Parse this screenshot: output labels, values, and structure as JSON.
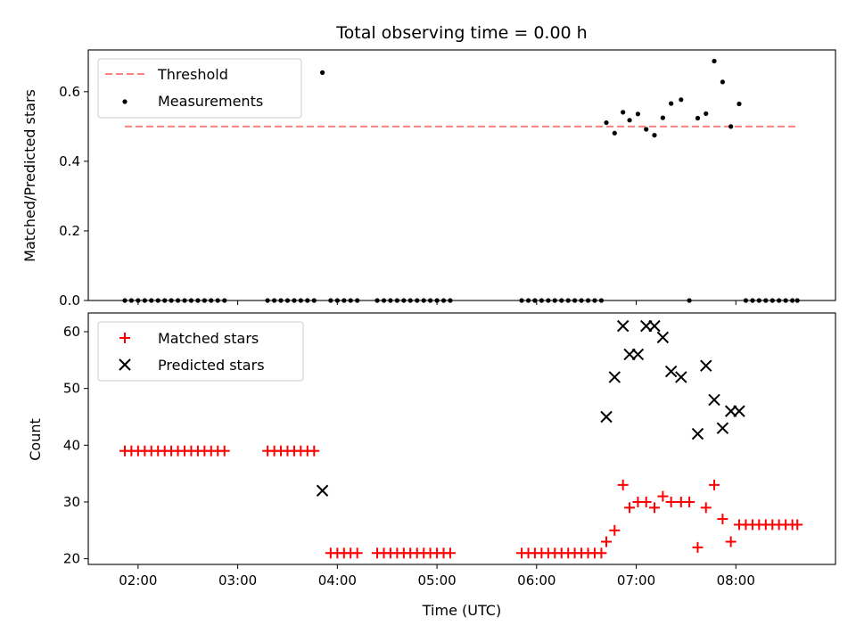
{
  "chart_data": {
    "title": "Total observing time = 0.00 h",
    "x_ticks": [
      "02:00",
      "03:00",
      "04:00",
      "05:00",
      "06:00",
      "07:00",
      "08:00"
    ],
    "x_tick_hours": [
      2,
      3,
      4,
      5,
      6,
      7,
      8
    ],
    "xlim_hours": [
      1.5,
      9.0
    ],
    "xlabel": "Time (UTC)",
    "panels": [
      {
        "type": "scatter",
        "ylabel": "Matched/Predicted stars",
        "ylim": [
          0,
          0.72
        ],
        "y_ticks": [
          0.0,
          0.2,
          0.4,
          0.6
        ],
        "y_tick_labels": [
          "0.0",
          "0.2",
          "0.4",
          "0.6"
        ],
        "legend_position": "top-left",
        "threshold": {
          "name": "Threshold",
          "value": 0.5,
          "x_start": 1.867,
          "x_end": 8.617,
          "color": "#ff7f7f"
        },
        "series": [
          {
            "name": "Measurements",
            "color": "#000000",
            "points": [
              [
                1.867,
                0
              ],
              [
                1.933,
                0
              ],
              [
                2.0,
                0
              ],
              [
                2.067,
                0
              ],
              [
                2.133,
                0
              ],
              [
                2.2,
                0
              ],
              [
                2.267,
                0
              ],
              [
                2.333,
                0
              ],
              [
                2.4,
                0
              ],
              [
                2.467,
                0
              ],
              [
                2.533,
                0
              ],
              [
                2.6,
                0
              ],
              [
                2.667,
                0
              ],
              [
                2.733,
                0
              ],
              [
                2.8,
                0
              ],
              [
                2.867,
                0
              ],
              [
                3.3,
                0
              ],
              [
                3.367,
                0
              ],
              [
                3.433,
                0
              ],
              [
                3.5,
                0
              ],
              [
                3.567,
                0
              ],
              [
                3.633,
                0
              ],
              [
                3.7,
                0
              ],
              [
                3.767,
                0
              ],
              [
                3.85,
                0.655
              ],
              [
                3.933,
                0
              ],
              [
                4.0,
                0
              ],
              [
                4.067,
                0
              ],
              [
                4.133,
                0
              ],
              [
                4.2,
                0
              ],
              [
                4.4,
                0
              ],
              [
                4.467,
                0
              ],
              [
                4.533,
                0
              ],
              [
                4.6,
                0
              ],
              [
                4.667,
                0
              ],
              [
                4.733,
                0
              ],
              [
                4.8,
                0
              ],
              [
                4.867,
                0
              ],
              [
                4.933,
                0
              ],
              [
                5.0,
                0
              ],
              [
                5.067,
                0
              ],
              [
                5.133,
                0
              ],
              [
                5.85,
                0
              ],
              [
                5.917,
                0
              ],
              [
                5.983,
                0
              ],
              [
                6.05,
                0
              ],
              [
                6.117,
                0
              ],
              [
                6.183,
                0
              ],
              [
                6.25,
                0
              ],
              [
                6.317,
                0
              ],
              [
                6.383,
                0
              ],
              [
                6.45,
                0
              ],
              [
                6.517,
                0
              ],
              [
                6.583,
                0
              ],
              [
                6.65,
                0
              ],
              [
                6.7,
                0.511
              ],
              [
                6.783,
                0.481
              ],
              [
                6.867,
                0.541
              ],
              [
                6.933,
                0.518
              ],
              [
                7.017,
                0.536
              ],
              [
                7.1,
                0.492
              ],
              [
                7.183,
                0.475
              ],
              [
                7.267,
                0.525
              ],
              [
                7.35,
                0.566
              ],
              [
                7.45,
                0.577
              ],
              [
                7.533,
                0
              ],
              [
                7.617,
                0.524
              ],
              [
                7.7,
                0.537
              ],
              [
                7.783,
                0.688
              ],
              [
                7.867,
                0.628
              ],
              [
                7.95,
                0.5
              ],
              [
                8.033,
                0.565
              ],
              [
                8.1,
                0
              ],
              [
                8.167,
                0
              ],
              [
                8.233,
                0
              ],
              [
                8.3,
                0
              ],
              [
                8.367,
                0
              ],
              [
                8.433,
                0
              ],
              [
                8.5,
                0
              ],
              [
                8.567,
                0
              ],
              [
                8.617,
                0
              ]
            ]
          }
        ]
      },
      {
        "type": "scatter",
        "ylabel": "Count",
        "ylim": [
          19.0,
          63.3
        ],
        "y_ticks": [
          20,
          30,
          40,
          50,
          60
        ],
        "y_tick_labels": [
          "20",
          "30",
          "40",
          "50",
          "60"
        ],
        "legend_position": "top-left",
        "series": [
          {
            "name": "Matched stars",
            "marker": "plus",
            "color": "#ff0000",
            "points": [
              [
                1.867,
                39
              ],
              [
                1.933,
                39
              ],
              [
                2.0,
                39
              ],
              [
                2.067,
                39
              ],
              [
                2.133,
                39
              ],
              [
                2.2,
                39
              ],
              [
                2.267,
                39
              ],
              [
                2.333,
                39
              ],
              [
                2.4,
                39
              ],
              [
                2.467,
                39
              ],
              [
                2.533,
                39
              ],
              [
                2.6,
                39
              ],
              [
                2.667,
                39
              ],
              [
                2.733,
                39
              ],
              [
                2.8,
                39
              ],
              [
                2.867,
                39
              ],
              [
                3.3,
                39
              ],
              [
                3.367,
                39
              ],
              [
                3.433,
                39
              ],
              [
                3.5,
                39
              ],
              [
                3.567,
                39
              ],
              [
                3.633,
                39
              ],
              [
                3.7,
                39
              ],
              [
                3.767,
                39
              ],
              [
                3.933,
                21
              ],
              [
                4.0,
                21
              ],
              [
                4.067,
                21
              ],
              [
                4.133,
                21
              ],
              [
                4.2,
                21
              ],
              [
                4.4,
                21
              ],
              [
                4.467,
                21
              ],
              [
                4.533,
                21
              ],
              [
                4.6,
                21
              ],
              [
                4.667,
                21
              ],
              [
                4.733,
                21
              ],
              [
                4.8,
                21
              ],
              [
                4.867,
                21
              ],
              [
                4.933,
                21
              ],
              [
                5.0,
                21
              ],
              [
                5.067,
                21
              ],
              [
                5.133,
                21
              ],
              [
                5.85,
                21
              ],
              [
                5.917,
                21
              ],
              [
                5.983,
                21
              ],
              [
                6.05,
                21
              ],
              [
                6.117,
                21
              ],
              [
                6.183,
                21
              ],
              [
                6.25,
                21
              ],
              [
                6.317,
                21
              ],
              [
                6.383,
                21
              ],
              [
                6.45,
                21
              ],
              [
                6.517,
                21
              ],
              [
                6.583,
                21
              ],
              [
                6.65,
                21
              ],
              [
                6.7,
                23
              ],
              [
                6.783,
                25
              ],
              [
                6.867,
                33
              ],
              [
                6.933,
                29
              ],
              [
                7.017,
                30
              ],
              [
                7.1,
                30
              ],
              [
                7.183,
                29
              ],
              [
                7.267,
                31
              ],
              [
                7.35,
                30
              ],
              [
                7.45,
                30
              ],
              [
                7.533,
                30
              ],
              [
                7.617,
                22
              ],
              [
                7.7,
                29
              ],
              [
                7.783,
                33
              ],
              [
                7.867,
                27
              ],
              [
                7.95,
                23
              ],
              [
                8.033,
                26
              ],
              [
                8.1,
                26
              ],
              [
                8.167,
                26
              ],
              [
                8.233,
                26
              ],
              [
                8.3,
                26
              ],
              [
                8.367,
                26
              ],
              [
                8.433,
                26
              ],
              [
                8.5,
                26
              ],
              [
                8.567,
                26
              ],
              [
                8.617,
                26
              ]
            ]
          },
          {
            "name": "Predicted stars",
            "marker": "x",
            "color": "#000000",
            "points": [
              [
                3.85,
                32
              ],
              [
                6.7,
                45
              ],
              [
                6.783,
                52
              ],
              [
                6.867,
                61
              ],
              [
                6.933,
                56
              ],
              [
                7.017,
                56
              ],
              [
                7.1,
                61
              ],
              [
                7.183,
                61
              ],
              [
                7.267,
                59
              ],
              [
                7.35,
                53
              ],
              [
                7.45,
                52
              ],
              [
                7.617,
                42
              ],
              [
                7.7,
                54
              ],
              [
                7.783,
                48
              ],
              [
                7.867,
                43
              ],
              [
                7.95,
                46
              ],
              [
                8.033,
                46
              ]
            ]
          }
        ]
      }
    ]
  }
}
